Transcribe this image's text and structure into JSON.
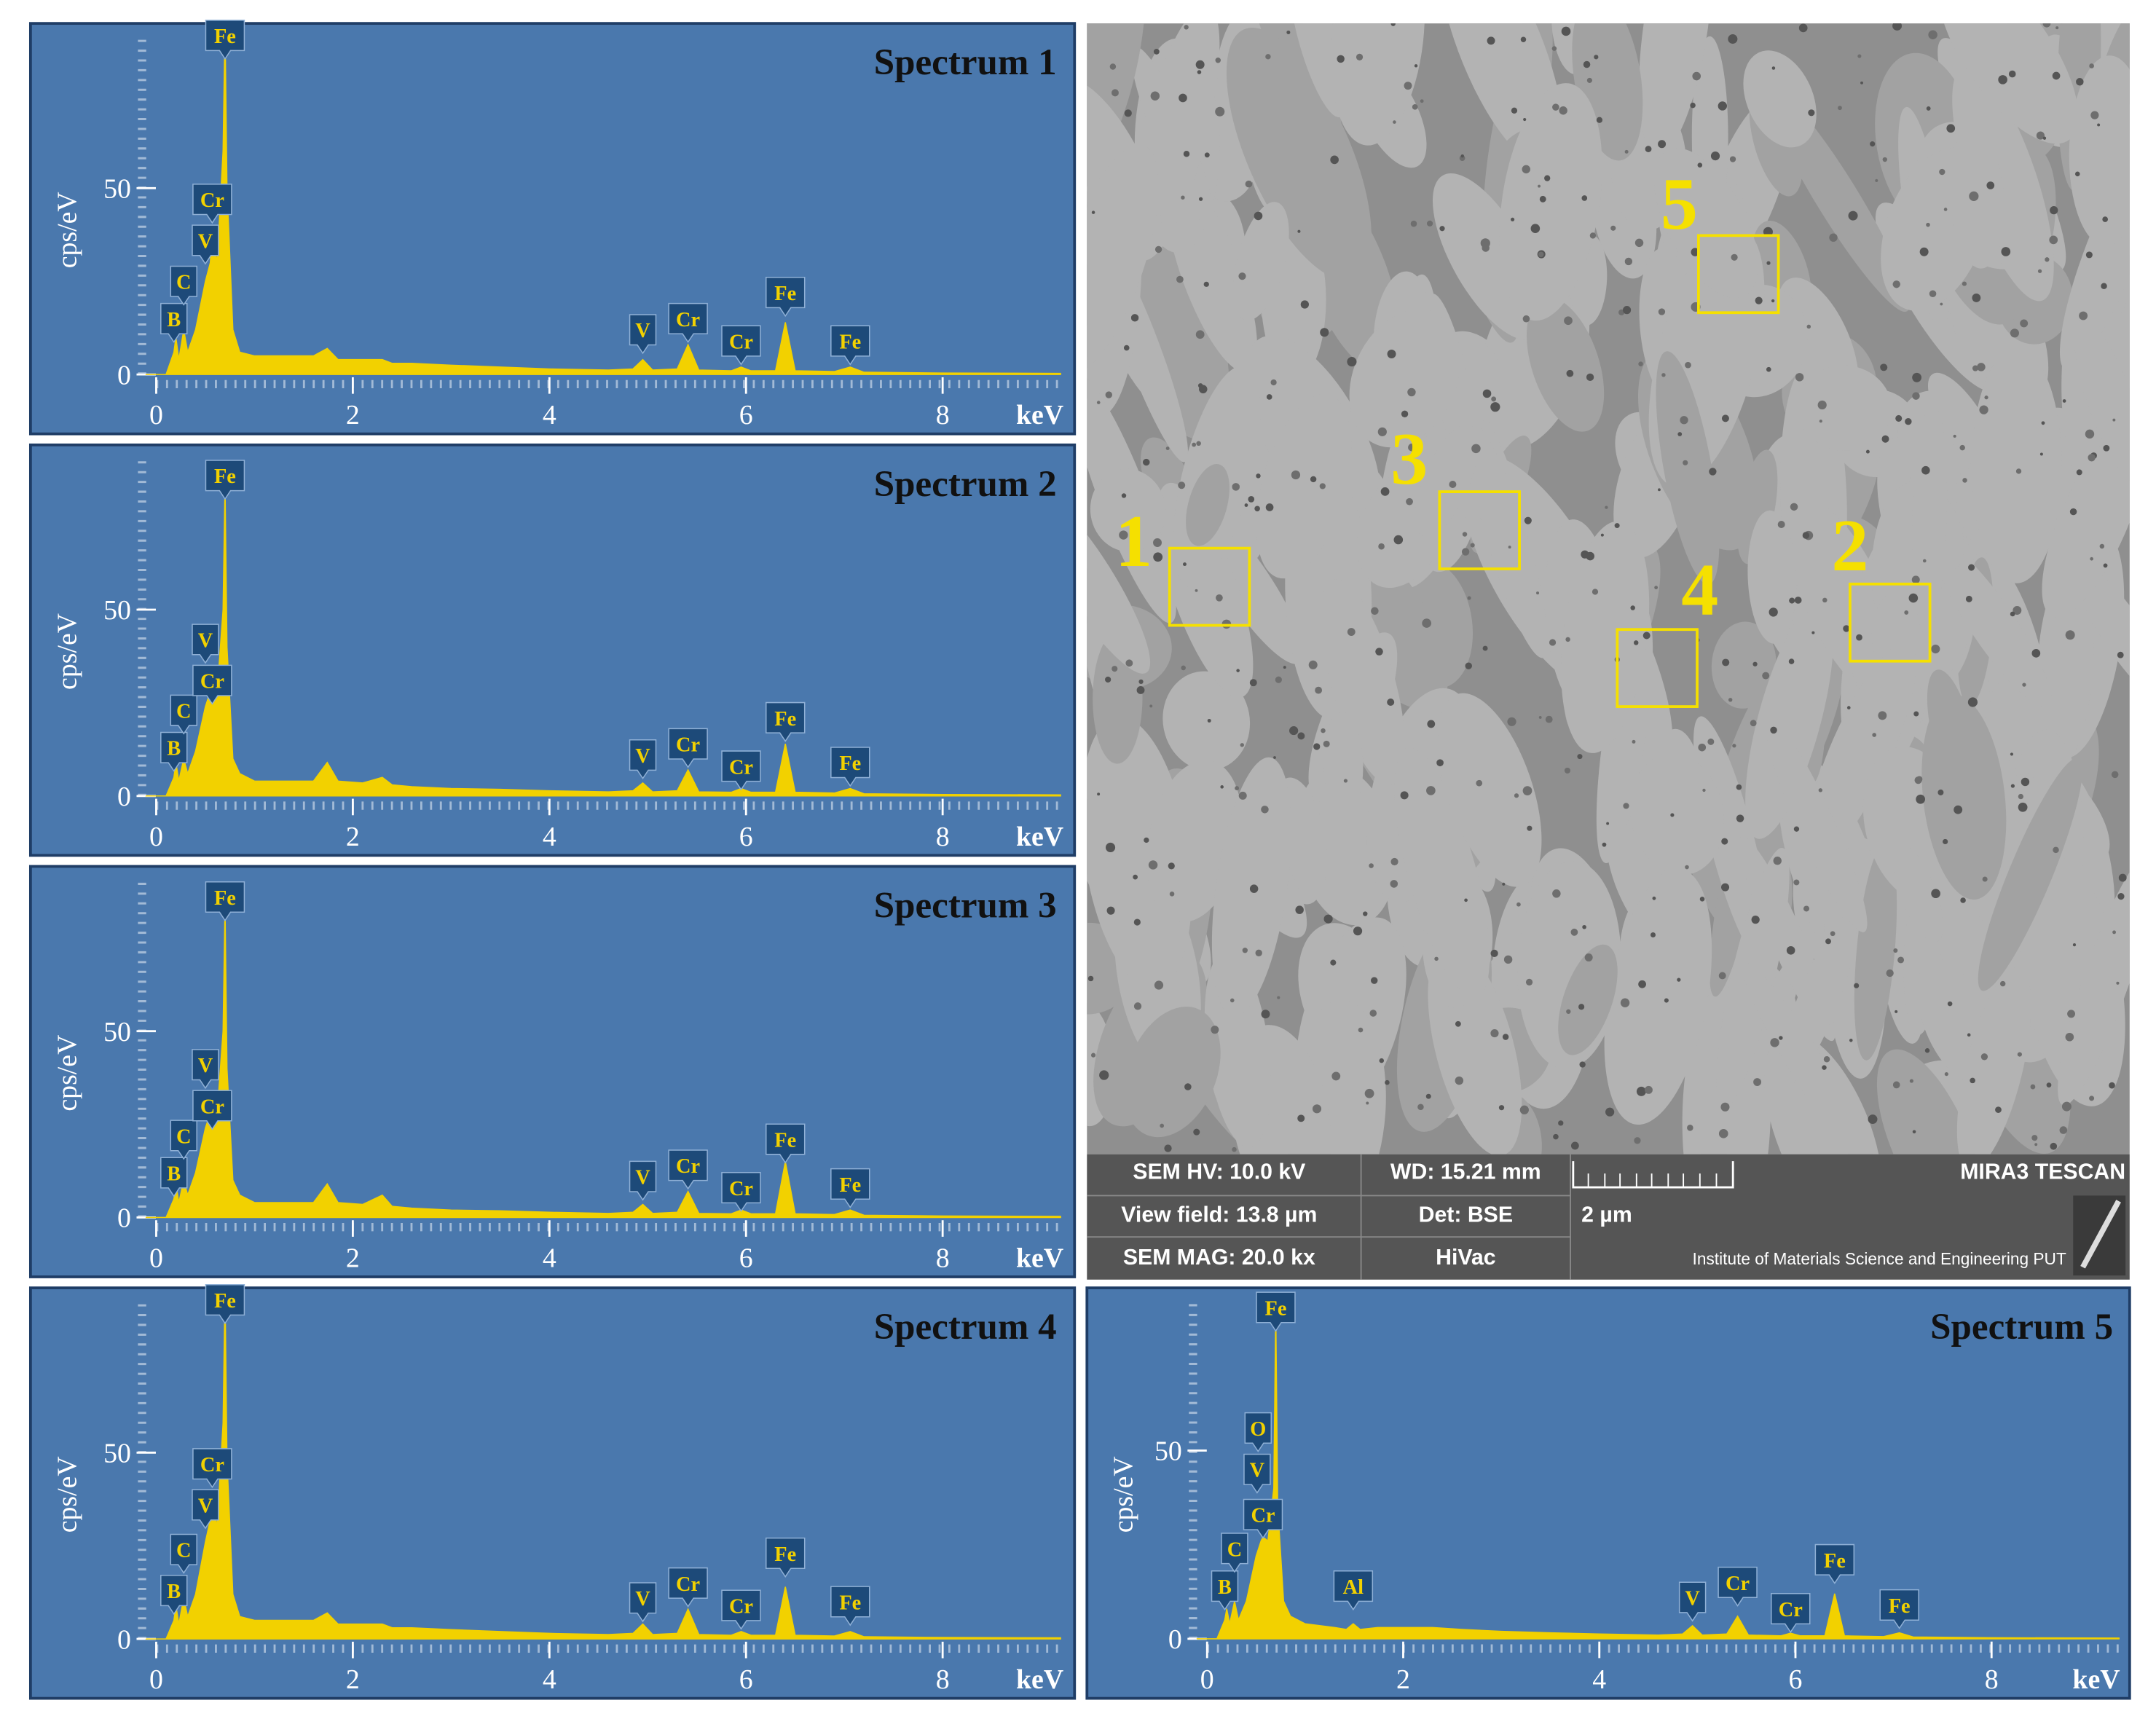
{
  "chart_data": [
    {
      "type": "area",
      "title": "Spectrum 1",
      "x_label": "keV",
      "y_label": "cps/eV",
      "color": "#f2d100",
      "background": "#4a78ad",
      "x": [
        -0.1,
        0.1,
        0.18,
        0.2,
        0.23,
        0.28,
        0.32,
        0.4,
        0.5,
        0.55,
        0.57,
        0.62,
        0.68,
        0.7,
        0.72,
        0.78,
        0.85,
        1.0,
        1.3,
        1.6,
        1.74,
        1.85,
        2.1,
        2.3,
        2.4,
        2.6,
        3.0,
        3.5,
        4.0,
        4.6,
        4.85,
        4.95,
        5.05,
        5.3,
        5.41,
        5.52,
        5.85,
        5.95,
        6.05,
        6.3,
        6.4,
        6.5,
        6.9,
        7.06,
        7.2,
        8.0,
        9.2
      ],
      "values": [
        0,
        0,
        6,
        10,
        4,
        12,
        6,
        12,
        25,
        30,
        38,
        30,
        60,
        94,
        50,
        12,
        6,
        5,
        5,
        5,
        7,
        4,
        4,
        4,
        3,
        3,
        2.5,
        2,
        1.5,
        1.2,
        1.5,
        4,
        1.2,
        1.5,
        8,
        1.2,
        1,
        2,
        1,
        1,
        14,
        1,
        0.8,
        2,
        0.6,
        0.4,
        0.3
      ],
      "xlim": [
        -0.2,
        9.3
      ],
      "ylim": [
        -3,
        92
      ],
      "xticks": [
        0,
        2,
        4,
        6,
        8
      ],
      "yticks": [
        0,
        50
      ],
      "annotations": [
        {
          "text": "B",
          "x": 0.18,
          "y": 15
        },
        {
          "text": "C",
          "x": 0.28,
          "y": 25
        },
        {
          "text": "V",
          "x": 0.5,
          "y": 36
        },
        {
          "text": "Cr",
          "x": 0.57,
          "y": 47
        },
        {
          "text": "Fe",
          "x": 0.7,
          "y": 91
        },
        {
          "text": "V",
          "x": 4.95,
          "y": 12
        },
        {
          "text": "Cr",
          "x": 5.41,
          "y": 15
        },
        {
          "text": "Cr",
          "x": 5.95,
          "y": 9
        },
        {
          "text": "Fe",
          "x": 6.4,
          "y": 22
        },
        {
          "text": "Fe",
          "x": 7.06,
          "y": 9
        }
      ]
    },
    {
      "type": "area",
      "title": "Spectrum 2",
      "x_label": "keV",
      "y_label": "cps/eV",
      "color": "#f2d100",
      "background": "#4a78ad",
      "x": [
        -0.1,
        0.1,
        0.18,
        0.2,
        0.23,
        0.28,
        0.32,
        0.4,
        0.5,
        0.55,
        0.57,
        0.62,
        0.68,
        0.7,
        0.72,
        0.78,
        0.85,
        1.0,
        1.3,
        1.6,
        1.74,
        1.85,
        2.1,
        2.3,
        2.4,
        2.6,
        3.0,
        3.5,
        4.0,
        4.6,
        4.85,
        4.95,
        5.05,
        5.3,
        5.41,
        5.52,
        5.85,
        5.95,
        6.05,
        6.3,
        6.4,
        6.5,
        6.9,
        7.06,
        7.2,
        8.0,
        9.2
      ],
      "values": [
        0,
        0,
        5,
        9,
        4,
        10,
        6,
        12,
        24,
        28,
        30,
        28,
        50,
        84,
        40,
        10,
        6,
        4,
        4,
        4,
        9,
        4,
        3.5,
        5,
        3,
        2.5,
        2,
        1.8,
        1.4,
        1.1,
        1.4,
        3.5,
        1.1,
        1.4,
        7,
        1.1,
        1,
        2,
        1,
        1,
        14,
        1,
        0.8,
        2,
        0.6,
        0.4,
        0.3
      ],
      "xlim": [
        -0.2,
        9.3
      ],
      "ylim": [
        -3,
        92
      ],
      "xticks": [
        0,
        2,
        4,
        6,
        8
      ],
      "yticks": [
        0,
        50
      ],
      "annotations": [
        {
          "text": "B",
          "x": 0.18,
          "y": 13
        },
        {
          "text": "C",
          "x": 0.28,
          "y": 23
        },
        {
          "text": "V",
          "x": 0.5,
          "y": 42
        },
        {
          "text": "Cr",
          "x": 0.57,
          "y": 31
        },
        {
          "text": "Fe",
          "x": 0.7,
          "y": 86
        },
        {
          "text": "V",
          "x": 4.95,
          "y": 11
        },
        {
          "text": "Cr",
          "x": 5.41,
          "y": 14
        },
        {
          "text": "Cr",
          "x": 5.95,
          "y": 8
        },
        {
          "text": "Fe",
          "x": 6.4,
          "y": 21
        },
        {
          "text": "Fe",
          "x": 7.06,
          "y": 9
        }
      ]
    },
    {
      "type": "area",
      "title": "Spectrum 3",
      "x_label": "keV",
      "y_label": "cps/eV",
      "color": "#f2d100",
      "background": "#4a78ad",
      "x": [
        -0.1,
        0.1,
        0.18,
        0.2,
        0.23,
        0.28,
        0.32,
        0.4,
        0.5,
        0.55,
        0.57,
        0.62,
        0.68,
        0.7,
        0.72,
        0.78,
        0.85,
        1.0,
        1.3,
        1.6,
        1.74,
        1.85,
        2.1,
        2.3,
        2.4,
        2.6,
        3.0,
        3.5,
        4.0,
        4.6,
        4.85,
        4.95,
        5.05,
        5.3,
        5.41,
        5.52,
        5.85,
        5.95,
        6.05,
        6.3,
        6.4,
        6.5,
        6.9,
        7.06,
        7.2,
        8.0,
        9.2
      ],
      "values": [
        0,
        0,
        5,
        9,
        4,
        10,
        6,
        12,
        24,
        28,
        30,
        28,
        50,
        84,
        40,
        10,
        6,
        4,
        4,
        4,
        9,
        4,
        3.5,
        6,
        3,
        2.5,
        2,
        1.8,
        1.4,
        1.1,
        1.4,
        3.5,
        1.1,
        1.4,
        7,
        1.1,
        1,
        2,
        1,
        1,
        15,
        1,
        0.8,
        2,
        0.6,
        0.4,
        0.3
      ],
      "xlim": [
        -0.2,
        9.3
      ],
      "ylim": [
        -3,
        92
      ],
      "xticks": [
        0,
        2,
        4,
        6,
        8
      ],
      "yticks": [
        0,
        50
      ],
      "annotations": [
        {
          "text": "B",
          "x": 0.18,
          "y": 12
        },
        {
          "text": "C",
          "x": 0.28,
          "y": 22
        },
        {
          "text": "V",
          "x": 0.5,
          "y": 41
        },
        {
          "text": "Cr",
          "x": 0.57,
          "y": 30
        },
        {
          "text": "Fe",
          "x": 0.7,
          "y": 86
        },
        {
          "text": "V",
          "x": 4.95,
          "y": 11
        },
        {
          "text": "Cr",
          "x": 5.41,
          "y": 14
        },
        {
          "text": "Cr",
          "x": 5.95,
          "y": 8
        },
        {
          "text": "Fe",
          "x": 6.4,
          "y": 21
        },
        {
          "text": "Fe",
          "x": 7.06,
          "y": 9
        }
      ]
    },
    {
      "type": "area",
      "title": "Spectrum 4",
      "x_label": "keV",
      "y_label": "cps/eV",
      "color": "#f2d100",
      "background": "#4a78ad",
      "x": [
        -0.1,
        0.1,
        0.18,
        0.2,
        0.23,
        0.28,
        0.32,
        0.4,
        0.5,
        0.55,
        0.57,
        0.62,
        0.68,
        0.7,
        0.72,
        0.78,
        0.85,
        1.0,
        1.3,
        1.6,
        1.74,
        1.85,
        2.1,
        2.3,
        2.4,
        2.6,
        3.0,
        3.5,
        4.0,
        4.6,
        4.85,
        4.95,
        5.05,
        5.3,
        5.41,
        5.52,
        5.85,
        5.95,
        6.05,
        6.3,
        6.4,
        6.5,
        6.9,
        7.06,
        7.2,
        8.0,
        9.2
      ],
      "values": [
        0,
        0,
        5,
        9,
        4,
        11,
        6,
        12,
        26,
        32,
        38,
        30,
        58,
        94,
        48,
        12,
        6,
        5,
        5,
        5,
        7,
        4,
        4,
        4,
        3,
        3,
        2.5,
        2,
        1.5,
        1.2,
        1.5,
        4,
        1.2,
        1.5,
        8,
        1.2,
        1,
        2,
        1,
        1,
        14,
        1,
        0.8,
        2,
        0.6,
        0.4,
        0.3
      ],
      "xlim": [
        -0.2,
        9.3
      ],
      "ylim": [
        -3,
        92
      ],
      "xticks": [
        0,
        2,
        4,
        6,
        8
      ],
      "yticks": [
        0,
        50
      ],
      "annotations": [
        {
          "text": "B",
          "x": 0.18,
          "y": 13
        },
        {
          "text": "C",
          "x": 0.28,
          "y": 24
        },
        {
          "text": "V",
          "x": 0.5,
          "y": 36
        },
        {
          "text": "Cr",
          "x": 0.57,
          "y": 47
        },
        {
          "text": "Fe",
          "x": 0.7,
          "y": 91
        },
        {
          "text": "V",
          "x": 4.95,
          "y": 11
        },
        {
          "text": "Cr",
          "x": 5.41,
          "y": 15
        },
        {
          "text": "Cr",
          "x": 5.95,
          "y": 9
        },
        {
          "text": "Fe",
          "x": 6.4,
          "y": 23
        },
        {
          "text": "Fe",
          "x": 7.06,
          "y": 10
        }
      ]
    },
    {
      "type": "area",
      "title": "Spectrum 5",
      "x_label": "keV",
      "y_label": "cps/eV",
      "color": "#f2d100",
      "background": "#4a78ad",
      "x": [
        -0.1,
        0.1,
        0.18,
        0.2,
        0.23,
        0.28,
        0.32,
        0.4,
        0.5,
        0.55,
        0.57,
        0.62,
        0.68,
        0.7,
        0.72,
        0.78,
        0.85,
        1.0,
        1.3,
        1.42,
        1.49,
        1.56,
        1.74,
        2.1,
        2.3,
        2.6,
        3.0,
        3.5,
        4.0,
        4.6,
        4.85,
        4.95,
        5.05,
        5.3,
        5.41,
        5.52,
        5.85,
        5.95,
        6.05,
        6.3,
        6.4,
        6.5,
        6.9,
        7.06,
        7.2,
        8.0,
        9.3
      ],
      "values": [
        0,
        0,
        5,
        8,
        4,
        10,
        5,
        10,
        22,
        26,
        27,
        26,
        40,
        88,
        35,
        10,
        6,
        4,
        3,
        2.5,
        4,
        2.5,
        3,
        3,
        3,
        2.5,
        2,
        1.6,
        1.3,
        1,
        1.3,
        3.5,
        1,
        1.3,
        6,
        1,
        0.8,
        1.5,
        0.8,
        0.8,
        12,
        0.8,
        0.6,
        1.6,
        0.5,
        0.3,
        0.2
      ],
      "xlim": [
        -0.2,
        9.38
      ],
      "ylim": [
        -3,
        91
      ],
      "xticks": [
        0,
        2,
        4,
        6,
        8
      ],
      "yticks": [
        0,
        50
      ],
      "annotations": [
        {
          "text": "B",
          "x": 0.18,
          "y": 14
        },
        {
          "text": "C",
          "x": 0.28,
          "y": 24
        },
        {
          "text": "O",
          "x": 0.52,
          "y": 56
        },
        {
          "text": "V",
          "x": 0.51,
          "y": 45
        },
        {
          "text": "Cr",
          "x": 0.57,
          "y": 33
        },
        {
          "text": "Fe",
          "x": 0.7,
          "y": 88
        },
        {
          "text": "Al",
          "x": 1.49,
          "y": 14
        },
        {
          "text": "V",
          "x": 4.95,
          "y": 11
        },
        {
          "text": "Cr",
          "x": 5.41,
          "y": 15
        },
        {
          "text": "Cr",
          "x": 5.95,
          "y": 8
        },
        {
          "text": "Fe",
          "x": 6.4,
          "y": 21
        },
        {
          "text": "Fe",
          "x": 7.06,
          "y": 9
        }
      ]
    }
  ],
  "sem_image": {
    "region_labels": [
      "1",
      "2",
      "3",
      "4",
      "5"
    ],
    "info_bar": {
      "hv": "SEM HV: 10.0 kV",
      "wd": "WD: 15.21 mm",
      "instrument": "MIRA3 TESCAN",
      "view_field": "View field: 13.8 µm",
      "detector": "Det: BSE",
      "scale_bar": "2 µm",
      "magnification": "SEM MAG: 20.0 kx",
      "vacuum": "HiVac",
      "institute": "Institute of Materials Science and Engineering  PUT"
    }
  }
}
